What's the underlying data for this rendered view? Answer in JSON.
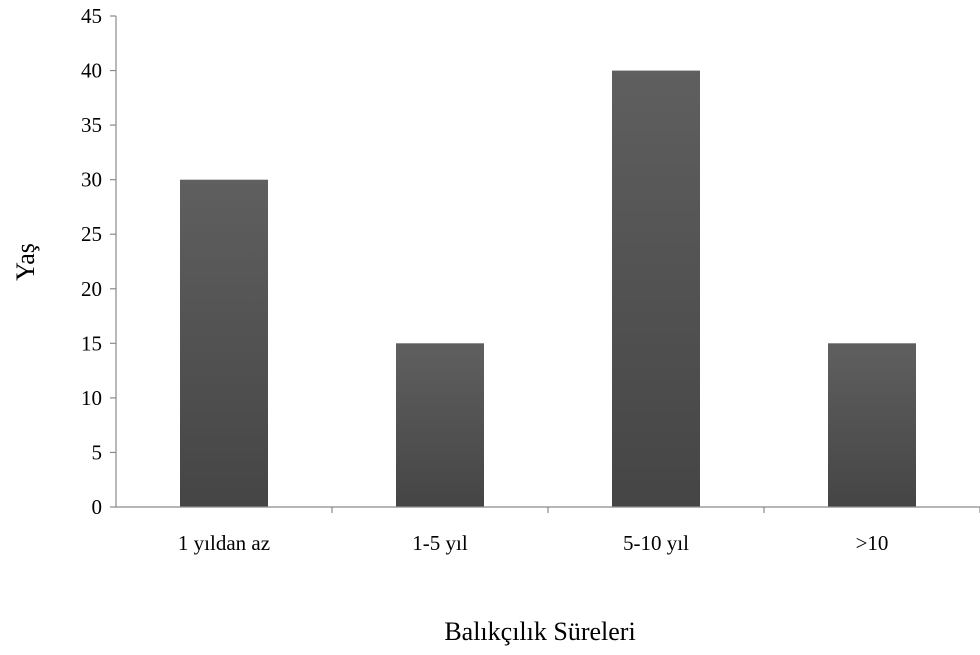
{
  "chart_data": {
    "type": "bar",
    "title": "",
    "xlabel": "Balıkçılık Süreleri",
    "ylabel": "Yaş",
    "categories": [
      "1 yıldan az",
      "1-5 yıl",
      "5-10 yıl",
      ">10"
    ],
    "values": [
      30,
      15,
      40,
      15
    ],
    "ylim": [
      0,
      45
    ],
    "yticks": [
      "0",
      "5",
      "10",
      "15",
      "20",
      "25",
      "30",
      "35",
      "40",
      "45"
    ],
    "grid": false,
    "legend": "none",
    "colors": {
      "bar_top": "#5f5f5f",
      "bar_bottom": "#454545",
      "axis": "#8a8a8a",
      "text": "#000000"
    }
  }
}
